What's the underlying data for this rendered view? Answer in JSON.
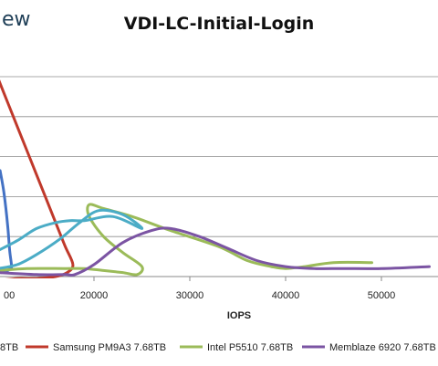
{
  "brand": {
    "text_fragment": "ew"
  },
  "chart_data": {
    "type": "line",
    "title": "VDI-LC-Initial-Login",
    "xlabel": "IOPS",
    "ylabel": "",
    "xlim": [
      10000,
      55000
    ],
    "ylim": [
      0,
      1.0
    ],
    "x_ticks": [
      "20000",
      "30000",
      "40000",
      "50000"
    ],
    "x_tick_values": [
      20000,
      30000,
      40000,
      50000
    ],
    "partial_tick_label": "00",
    "y_gridlines": [
      0.2,
      0.4,
      0.6,
      0.8,
      1.0
    ],
    "grid": "horizontal",
    "legend_position": "bottom",
    "series": [
      {
        "name": "...8TB",
        "legend_text": "8TB",
        "color": "#4472c4",
        "x": [
          10200,
          10600,
          11000,
          11200,
          11400,
          11200,
          11000,
          10600,
          10000
        ],
        "y": [
          0.53,
          0.42,
          0.25,
          0.13,
          0.05,
          0.04,
          0.03,
          0.03,
          0.02
        ]
      },
      {
        "name": "Samsung PM9A3 7.68TB",
        "legend_text": "Samsung PM9A3 7.68TB",
        "color": "#c0392b",
        "x": [
          10000,
          11000,
          12000,
          13000,
          14000,
          15000,
          16000,
          17000,
          17800,
          17200,
          16000,
          14000,
          12000,
          10000
        ],
        "y": [
          0.99,
          0.87,
          0.75,
          0.63,
          0.51,
          0.39,
          0.27,
          0.15,
          0.06,
          0.02,
          0.0,
          -0.01,
          -0.01,
          -0.02
        ]
      },
      {
        "name": "Intel P5510 7.68TB",
        "legend_text": "Intel P5510 7.68TB",
        "color": "#9bbb59",
        "x": [
          10000,
          13000,
          17000,
          19000,
          21000,
          23000,
          24500,
          25000,
          23000,
          21000,
          19500,
          19500,
          21000,
          24000,
          28000,
          33000,
          36000,
          38500,
          40000,
          42000,
          45000,
          49000
        ],
        "y": [
          0.03,
          0.04,
          0.04,
          0.04,
          0.03,
          0.02,
          0.01,
          0.05,
          0.12,
          0.2,
          0.3,
          0.36,
          0.34,
          0.3,
          0.23,
          0.15,
          0.08,
          0.05,
          0.04,
          0.05,
          0.07,
          0.07
        ]
      },
      {
        "name": "Memblaze 6920 7.68TB",
        "legend_text": "Memblaze 6920 7.68TB",
        "color": "#7b54a3",
        "x": [
          10000,
          14000,
          17000,
          18000,
          20000,
          23000,
          26000,
          28000,
          31000,
          34000,
          37000,
          40000,
          43000,
          46000,
          50000,
          55000
        ],
        "y": [
          0.02,
          0.01,
          0.01,
          0.01,
          0.06,
          0.17,
          0.23,
          0.24,
          0.2,
          0.14,
          0.08,
          0.05,
          0.04,
          0.04,
          0.04,
          0.05
        ]
      },
      {
        "name": "",
        "legend_text": "",
        "color": "#4bacc6",
        "x": [
          10000,
          12000,
          14000,
          16000,
          17500,
          19000,
          22000,
          25000,
          23000,
          20500,
          18500,
          16500,
          14000,
          12000,
          10000
        ],
        "y": [
          0.13,
          0.18,
          0.24,
          0.27,
          0.28,
          0.28,
          0.3,
          0.24,
          0.31,
          0.33,
          0.27,
          0.19,
          0.11,
          0.06,
          0.04
        ]
      }
    ]
  }
}
